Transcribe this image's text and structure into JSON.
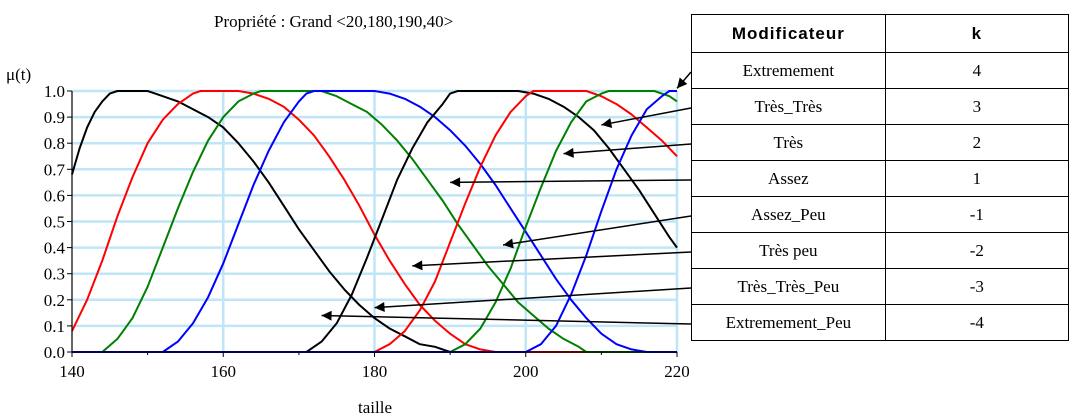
{
  "chart_data": {
    "type": "line",
    "title": "Propriété : Grand <20,180,190,40>",
    "xlabel": "taille",
    "ylabel": "μ(t)",
    "xlim": [
      140,
      220
    ],
    "ylim": [
      0,
      1
    ],
    "x_ticks": [
      140,
      160,
      180,
      200,
      220
    ],
    "y_ticks": [
      "0.0",
      "0.1",
      "0.2",
      "0.3",
      "0.4",
      "0.5",
      "0.6",
      "0.7",
      "0.8",
      "0.9",
      "1.0"
    ],
    "grid": true,
    "series": [
      {
        "color": "#000000",
        "points": [
          [
            140,
            0.68
          ],
          [
            141,
            0.78
          ],
          [
            142,
            0.86
          ],
          [
            143,
            0.92
          ],
          [
            144,
            0.96
          ],
          [
            145,
            0.99
          ],
          [
            146,
            1.0
          ],
          [
            150,
            1.0
          ],
          [
            151,
            0.99
          ],
          [
            152,
            0.98
          ],
          [
            154,
            0.96
          ],
          [
            156,
            0.93
          ],
          [
            158,
            0.9
          ],
          [
            160,
            0.86
          ],
          [
            162,
            0.8
          ],
          [
            164,
            0.73
          ],
          [
            166,
            0.65
          ],
          [
            168,
            0.56
          ],
          [
            170,
            0.47
          ],
          [
            172,
            0.39
          ],
          [
            174,
            0.31
          ],
          [
            176,
            0.24
          ],
          [
            178,
            0.18
          ],
          [
            180,
            0.13
          ],
          [
            182,
            0.09
          ],
          [
            184,
            0.06
          ],
          [
            186,
            0.03
          ],
          [
            188,
            0.02
          ],
          [
            190,
            0.0
          ],
          [
            220,
            0.0
          ]
        ]
      },
      {
        "color": "#ff0000",
        "points": [
          [
            140,
            0.08
          ],
          [
            142,
            0.2
          ],
          [
            144,
            0.35
          ],
          [
            146,
            0.52
          ],
          [
            148,
            0.67
          ],
          [
            150,
            0.8
          ],
          [
            152,
            0.89
          ],
          [
            154,
            0.95
          ],
          [
            156,
            0.99
          ],
          [
            157,
            1.0
          ],
          [
            162,
            1.0
          ],
          [
            164,
            0.99
          ],
          [
            166,
            0.97
          ],
          [
            168,
            0.94
          ],
          [
            170,
            0.89
          ],
          [
            172,
            0.83
          ],
          [
            174,
            0.75
          ],
          [
            176,
            0.66
          ],
          [
            178,
            0.56
          ],
          [
            180,
            0.45
          ],
          [
            182,
            0.35
          ],
          [
            184,
            0.26
          ],
          [
            186,
            0.18
          ],
          [
            188,
            0.12
          ],
          [
            190,
            0.07
          ],
          [
            192,
            0.03
          ],
          [
            194,
            0.01
          ],
          [
            196,
            0.0
          ],
          [
            220,
            0.0
          ]
        ]
      },
      {
        "color": "#008000",
        "points": [
          [
            140,
            0.0
          ],
          [
            144,
            0.0
          ],
          [
            146,
            0.05
          ],
          [
            148,
            0.13
          ],
          [
            150,
            0.25
          ],
          [
            152,
            0.4
          ],
          [
            154,
            0.55
          ],
          [
            156,
            0.69
          ],
          [
            158,
            0.81
          ],
          [
            160,
            0.9
          ],
          [
            162,
            0.96
          ],
          [
            164,
            0.99
          ],
          [
            165,
            1.0
          ],
          [
            173,
            1.0
          ],
          [
            175,
            0.98
          ],
          [
            177,
            0.95
          ],
          [
            179,
            0.92
          ],
          [
            181,
            0.87
          ],
          [
            183,
            0.81
          ],
          [
            185,
            0.74
          ],
          [
            187,
            0.66
          ],
          [
            189,
            0.58
          ],
          [
            191,
            0.49
          ],
          [
            193,
            0.41
          ],
          [
            195,
            0.33
          ],
          [
            197,
            0.26
          ],
          [
            199,
            0.19
          ],
          [
            201,
            0.14
          ],
          [
            203,
            0.09
          ],
          [
            205,
            0.05
          ],
          [
            207,
            0.02
          ],
          [
            208,
            0.0
          ],
          [
            220,
            0.0
          ]
        ]
      },
      {
        "color": "#0000ff",
        "points": [
          [
            140,
            0.0
          ],
          [
            152,
            0.0
          ],
          [
            154,
            0.04
          ],
          [
            156,
            0.11
          ],
          [
            158,
            0.21
          ],
          [
            160,
            0.34
          ],
          [
            162,
            0.49
          ],
          [
            164,
            0.64
          ],
          [
            166,
            0.77
          ],
          [
            168,
            0.88
          ],
          [
            170,
            0.96
          ],
          [
            171,
            0.99
          ],
          [
            172,
            1.0
          ],
          [
            180,
            1.0
          ],
          [
            182,
            0.99
          ],
          [
            184,
            0.97
          ],
          [
            186,
            0.94
          ],
          [
            188,
            0.9
          ],
          [
            190,
            0.85
          ],
          [
            192,
            0.79
          ],
          [
            194,
            0.72
          ],
          [
            196,
            0.64
          ],
          [
            198,
            0.55
          ],
          [
            200,
            0.46
          ],
          [
            202,
            0.37
          ],
          [
            204,
            0.28
          ],
          [
            206,
            0.2
          ],
          [
            208,
            0.13
          ],
          [
            210,
            0.07
          ],
          [
            212,
            0.03
          ],
          [
            214,
            0.01
          ],
          [
            216,
            0.0
          ],
          [
            220,
            0.0
          ]
        ]
      },
      {
        "color": "#000000",
        "points": [
          [
            140,
            0.0
          ],
          [
            171,
            0.0
          ],
          [
            173,
            0.04
          ],
          [
            175,
            0.11
          ],
          [
            177,
            0.22
          ],
          [
            179,
            0.36
          ],
          [
            181,
            0.51
          ],
          [
            183,
            0.66
          ],
          [
            185,
            0.78
          ],
          [
            187,
            0.88
          ],
          [
            189,
            0.95
          ],
          [
            190,
            0.99
          ],
          [
            191,
            1.0
          ],
          [
            199,
            1.0
          ],
          [
            201,
            0.99
          ],
          [
            203,
            0.97
          ],
          [
            205,
            0.94
          ],
          [
            207,
            0.9
          ],
          [
            209,
            0.85
          ],
          [
            211,
            0.78
          ],
          [
            213,
            0.7
          ],
          [
            215,
            0.62
          ],
          [
            217,
            0.53
          ],
          [
            219,
            0.44
          ],
          [
            220,
            0.4
          ]
        ]
      },
      {
        "color": "#ff0000",
        "points": [
          [
            140,
            0.0
          ],
          [
            180,
            0.0
          ],
          [
            182,
            0.03
          ],
          [
            184,
            0.08
          ],
          [
            186,
            0.16
          ],
          [
            188,
            0.27
          ],
          [
            190,
            0.42
          ],
          [
            192,
            0.57
          ],
          [
            194,
            0.71
          ],
          [
            196,
            0.83
          ],
          [
            198,
            0.92
          ],
          [
            200,
            0.98
          ],
          [
            201,
            1.0
          ],
          [
            208,
            1.0
          ],
          [
            210,
            0.98
          ],
          [
            212,
            0.95
          ],
          [
            214,
            0.91
          ],
          [
            216,
            0.86
          ],
          [
            218,
            0.81
          ],
          [
            220,
            0.75
          ]
        ]
      },
      {
        "color": "#008000",
        "points": [
          [
            140,
            0.0
          ],
          [
            190,
            0.0
          ],
          [
            192,
            0.03
          ],
          [
            194,
            0.09
          ],
          [
            196,
            0.19
          ],
          [
            198,
            0.32
          ],
          [
            200,
            0.48
          ],
          [
            202,
            0.63
          ],
          [
            204,
            0.77
          ],
          [
            206,
            0.88
          ],
          [
            208,
            0.96
          ],
          [
            210,
            0.99
          ],
          [
            211,
            1.0
          ],
          [
            217,
            1.0
          ],
          [
            219,
            0.98
          ],
          [
            220,
            0.96
          ]
        ]
      },
      {
        "color": "#0000ff",
        "points": [
          [
            140,
            0.0
          ],
          [
            200,
            0.0
          ],
          [
            202,
            0.03
          ],
          [
            204,
            0.1
          ],
          [
            206,
            0.22
          ],
          [
            208,
            0.37
          ],
          [
            210,
            0.54
          ],
          [
            212,
            0.7
          ],
          [
            214,
            0.83
          ],
          [
            216,
            0.93
          ],
          [
            218,
            0.98
          ],
          [
            219,
            1.0
          ],
          [
            220,
            1.0
          ]
        ]
      }
    ],
    "arrows": [
      {
        "from_row": 0,
        "to": [
          220,
          1.01
        ]
      },
      {
        "from_row": 1,
        "to": [
          210,
          0.87
        ]
      },
      {
        "from_row": 2,
        "to": [
          205,
          0.76
        ]
      },
      {
        "from_row": 3,
        "to": [
          190,
          0.65
        ]
      },
      {
        "from_row": 4,
        "to": [
          197,
          0.41
        ]
      },
      {
        "from_row": 5,
        "to": [
          185,
          0.33
        ]
      },
      {
        "from_row": 6,
        "to": [
          180,
          0.17
        ]
      },
      {
        "from_row": 7,
        "to": [
          173,
          0.14
        ]
      }
    ]
  },
  "table": {
    "headers": [
      "Modificateur",
      "k"
    ],
    "rows": [
      {
        "modifier": "Extremement",
        "k": "4"
      },
      {
        "modifier": "Très_Très",
        "k": "3"
      },
      {
        "modifier": "Très",
        "k": "2"
      },
      {
        "modifier": "Assez",
        "k": "1"
      },
      {
        "modifier": "Assez_Peu",
        "k": "-1"
      },
      {
        "modifier": "Très peu",
        "k": "-2"
      },
      {
        "modifier": "Très_Très_Peu",
        "k": "-3"
      },
      {
        "modifier": "Extremement_Peu",
        "k": "-4"
      }
    ]
  }
}
